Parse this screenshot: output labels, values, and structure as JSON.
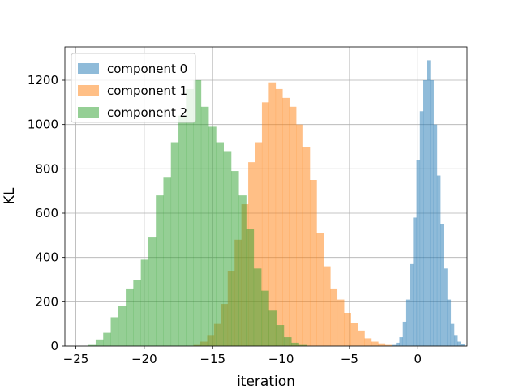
{
  "chart_data": {
    "type": "histogram",
    "xlabel": "iteration",
    "ylabel": "KL",
    "xlim": [
      -25.8,
      3.6
    ],
    "ylim": [
      0,
      1350
    ],
    "xticks": [
      -25,
      -20,
      -15,
      -10,
      -5,
      0
    ],
    "yticks": [
      0,
      200,
      400,
      600,
      800,
      1000,
      1200
    ],
    "grid": true,
    "legend_position": "upper-left",
    "series": [
      {
        "name": "component 0",
        "color": "#1f77b4",
        "bin_start": -1.85,
        "bin_width": 0.25,
        "counts": [
          5,
          15,
          40,
          110,
          210,
          370,
          580,
          840,
          1060,
          1200,
          1290,
          1200,
          1000,
          770,
          550,
          350,
          210,
          100,
          50,
          20,
          10
        ]
      },
      {
        "name": "component 1",
        "color": "#ff7f0e",
        "bin_start": -16.4,
        "bin_width": 0.5,
        "counts": [
          5,
          20,
          50,
          100,
          190,
          340,
          480,
          640,
          830,
          920,
          1100,
          1190,
          1160,
          1120,
          1080,
          1000,
          900,
          750,
          510,
          360,
          260,
          210,
          150,
          105,
          70,
          35,
          20,
          12,
          5
        ]
      },
      {
        "name": "component 2",
        "color": "#2ca02c",
        "bin_start": -24.1,
        "bin_width": 0.55,
        "counts": [
          5,
          30,
          60,
          130,
          180,
          260,
          300,
          390,
          490,
          680,
          760,
          920,
          1040,
          1160,
          1200,
          1080,
          990,
          920,
          880,
          790,
          680,
          530,
          350,
          250,
          160,
          95,
          40,
          15,
          5
        ]
      }
    ]
  }
}
